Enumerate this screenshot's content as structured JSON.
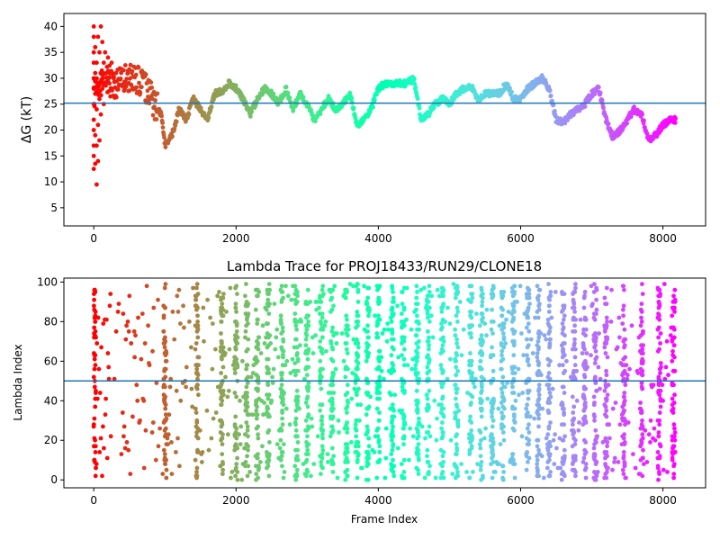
{
  "chart_data": [
    {
      "type": "scatter",
      "title": "",
      "xlabel": "",
      "ylabel": "ΔG (kT)",
      "xlim": [
        -420,
        8600
      ],
      "ylim": [
        1.5,
        42.5
      ],
      "xticks": [
        0,
        2000,
        4000,
        6000,
        8000
      ],
      "yticks": [
        5,
        10,
        15,
        20,
        25,
        30,
        35,
        40
      ],
      "hline": 25.2,
      "hline_color": "#1f77b4",
      "colormap": "rainbow (red at frame 0 → violet at last frame)",
      "grid": false,
      "trace_keypoints": [
        [
          0,
          27
        ],
        [
          150,
          30
        ],
        [
          300,
          29
        ],
        [
          500,
          30
        ],
        [
          700,
          29
        ],
        [
          850,
          25
        ],
        [
          950,
          23
        ],
        [
          1000,
          17
        ],
        [
          1100,
          19
        ],
        [
          1200,
          24
        ],
        [
          1300,
          22
        ],
        [
          1400,
          26
        ],
        [
          1500,
          24
        ],
        [
          1600,
          22
        ],
        [
          1700,
          27
        ],
        [
          1800,
          27.5
        ],
        [
          1900,
          29
        ],
        [
          2000,
          28
        ],
        [
          2100,
          26
        ],
        [
          2200,
          23
        ],
        [
          2300,
          26
        ],
        [
          2400,
          28
        ],
        [
          2500,
          27
        ],
        [
          2600,
          25
        ],
        [
          2700,
          28
        ],
        [
          2800,
          24
        ],
        [
          2900,
          27
        ],
        [
          3000,
          25
        ],
        [
          3100,
          22
        ],
        [
          3200,
          24
        ],
        [
          3300,
          26
        ],
        [
          3400,
          24
        ],
        [
          3500,
          25
        ],
        [
          3600,
          27
        ],
        [
          3700,
          21
        ],
        [
          3800,
          22
        ],
        [
          3900,
          24
        ],
        [
          4000,
          28
        ],
        [
          4100,
          29
        ],
        [
          4200,
          29
        ],
        [
          4300,
          29
        ],
        [
          4400,
          29
        ],
        [
          4500,
          30
        ],
        [
          4600,
          22
        ],
        [
          4700,
          23
        ],
        [
          4800,
          25
        ],
        [
          4900,
          26
        ],
        [
          5000,
          25
        ],
        [
          5100,
          27
        ],
        [
          5200,
          28
        ],
        [
          5300,
          28.5
        ],
        [
          5400,
          26
        ],
        [
          5500,
          27
        ],
        [
          5600,
          27
        ],
        [
          5700,
          27
        ],
        [
          5800,
          29
        ],
        [
          5900,
          26
        ],
        [
          6000,
          26
        ],
        [
          6100,
          28
        ],
        [
          6200,
          29
        ],
        [
          6300,
          30
        ],
        [
          6400,
          28
        ],
        [
          6500,
          22
        ],
        [
          6600,
          21.5
        ],
        [
          6700,
          23
        ],
        [
          6800,
          24
        ],
        [
          6900,
          25
        ],
        [
          7000,
          27
        ],
        [
          7100,
          28
        ],
        [
          7200,
          22
        ],
        [
          7300,
          18.5
        ],
        [
          7400,
          20
        ],
        [
          7500,
          22
        ],
        [
          7600,
          24
        ],
        [
          7700,
          23
        ],
        [
          7800,
          18
        ],
        [
          7900,
          19
        ],
        [
          8000,
          21
        ],
        [
          8100,
          22
        ],
        [
          8150,
          22
        ]
      ],
      "early_scatter_keypoints": [
        [
          0,
          40
        ],
        [
          0,
          38
        ],
        [
          0,
          35
        ],
        [
          0,
          33
        ],
        [
          0,
          30
        ],
        [
          0,
          28
        ],
        [
          0,
          25
        ],
        [
          0,
          22
        ],
        [
          0,
          20
        ],
        [
          0,
          17
        ],
        [
          0,
          15
        ],
        [
          0,
          12.5
        ],
        [
          20,
          36
        ],
        [
          20,
          31
        ],
        [
          20,
          27
        ],
        [
          20,
          19
        ],
        [
          20,
          13.5
        ],
        [
          40,
          33
        ],
        [
          40,
          24
        ],
        [
          40,
          17
        ],
        [
          40,
          9.5
        ],
        [
          60,
          38
        ],
        [
          60,
          29
        ],
        [
          60,
          21
        ],
        [
          60,
          14
        ],
        [
          80,
          35
        ],
        [
          80,
          26
        ],
        [
          80,
          18
        ],
        [
          100,
          40
        ],
        [
          100,
          31
        ],
        [
          100,
          23
        ],
        [
          120,
          37
        ],
        [
          120,
          28
        ],
        [
          140,
          33
        ],
        [
          140,
          25
        ],
        [
          160,
          35
        ],
        [
          180,
          31
        ],
        [
          200,
          34
        ],
        [
          220,
          29
        ],
        [
          250,
          33
        ],
        [
          280,
          30
        ]
      ]
    },
    {
      "type": "scatter",
      "title": "Lambda Trace for PROJ18433/RUN29/CLONE18",
      "xlabel": "Frame Index",
      "ylabel": "Lambda Index",
      "xlim": [
        -420,
        8600
      ],
      "ylim": [
        -4,
        102
      ],
      "xticks": [
        0,
        2000,
        4000,
        6000,
        8000
      ],
      "yticks": [
        0,
        20,
        40,
        60,
        80,
        100
      ],
      "hline": 50,
      "hline_color": "#1f77b4",
      "colormap": "rainbow (red at frame 0 → violet at last frame)",
      "grid": false,
      "lambda_range": [
        0,
        99
      ],
      "frame_range": [
        0,
        8180
      ],
      "dense_columns_x": [
        1000,
        1450,
        1800,
        2000,
        2150,
        2300,
        2450,
        2650,
        2850,
        3000,
        3200,
        3350,
        3550,
        3700,
        3850,
        4000,
        4200,
        4350,
        4550,
        4700,
        4900,
        5100,
        5300,
        5450,
        5600,
        5750,
        5900,
        6100,
        6250,
        6400,
        6600,
        6750,
        6900,
        7050,
        7200,
        7450,
        7700,
        7950,
        8150
      ]
    }
  ]
}
